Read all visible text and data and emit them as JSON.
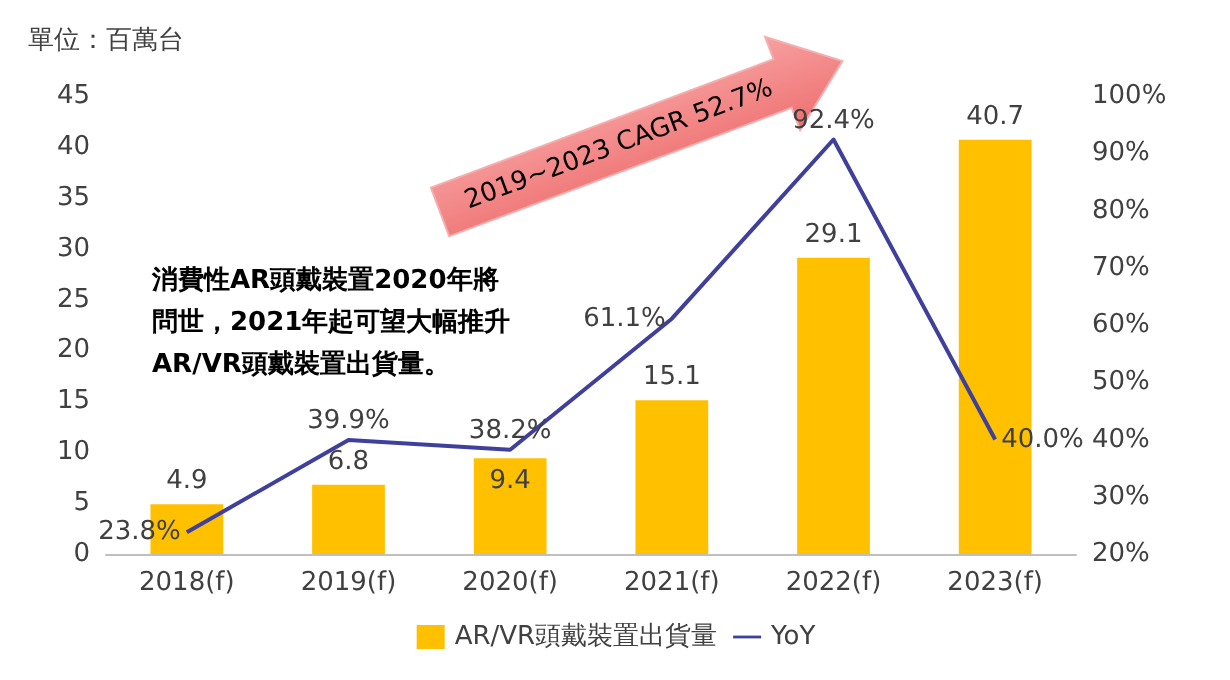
{
  "chart_data": {
    "type": "bar",
    "ylabel": "單位：百萬台",
    "categories": [
      "2018(f)",
      "2019(f)",
      "2020(f)",
      "2021(f)",
      "2022(f)",
      "2023(f)"
    ],
    "series": [
      {
        "name": "AR/VR頭戴裝置出貨量",
        "color": "#ffc000",
        "values": [
          4.9,
          6.8,
          9.4,
          15.1,
          29.1,
          40.7
        ],
        "value_labels": [
          "4.9",
          "6.8",
          "9.4",
          "15.1",
          "29.1",
          "40.7"
        ]
      },
      {
        "name": "YoY",
        "type": "line",
        "axis": "y2",
        "color": "#3f3f9c",
        "values": [
          23.8,
          39.9,
          38.2,
          61.1,
          92.4,
          40.0
        ],
        "value_labels": [
          "23.8%",
          "39.9%",
          "38.2%",
          "61.1%",
          "92.4%",
          "40.0%"
        ]
      }
    ],
    "ylim": [
      0,
      45
    ],
    "yticks": [
      0,
      5,
      10,
      15,
      20,
      25,
      30,
      35,
      40,
      45
    ],
    "y2lim": [
      20,
      100
    ],
    "y2ticks": [
      {
        "value": 20,
        "label": "20%"
      },
      {
        "value": 30,
        "label": "30%"
      },
      {
        "value": 40,
        "label": "40%"
      },
      {
        "value": 50,
        "label": "50%"
      },
      {
        "value": 60,
        "label": "60%"
      },
      {
        "value": 70,
        "label": "70%"
      },
      {
        "value": 80,
        "label": "80%"
      },
      {
        "value": 90,
        "label": "90%"
      },
      {
        "value": 100,
        "label": "100%"
      }
    ],
    "annotations": [
      "消費性AR頭戴裝置2020年將問世，2021年起可望大幅推升AR/VR頭戴裝置出貨量。",
      "2019~2023 CAGR 52.7%"
    ],
    "legend": "bottom",
    "grid": false,
    "marker": "none"
  }
}
